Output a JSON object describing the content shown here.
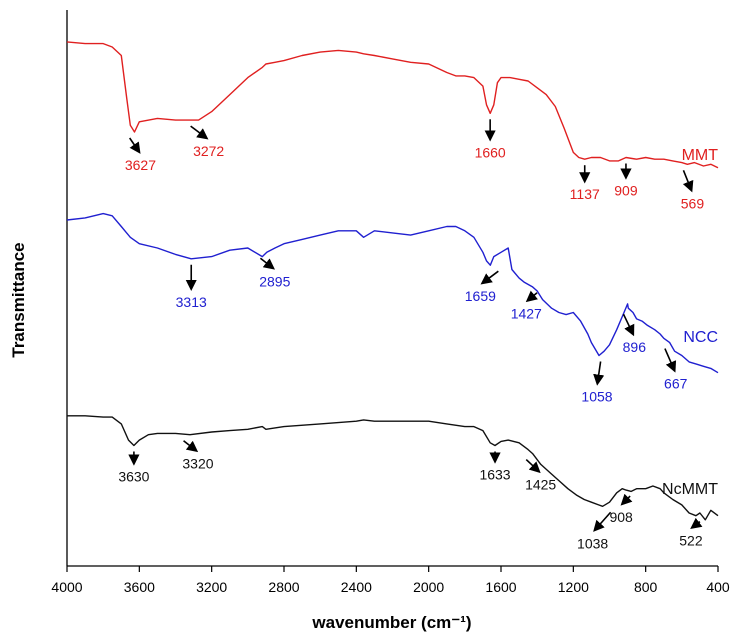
{
  "chart_data": {
    "type": "line",
    "title": "",
    "xlabel": "wavenumber (cm⁻¹)",
    "ylabel": "Transmittance",
    "xlim": [
      4000,
      400
    ],
    "x_ticks": [
      "4000",
      "3600",
      "3200",
      "2800",
      "2400",
      "2000",
      "1600",
      "1200",
      "800",
      "400"
    ],
    "y_ticks": [],
    "grid": false,
    "legend": "none (series labelled directly at right end of each curve)",
    "series": [
      {
        "name": "MMT",
        "color": "#e02020",
        "x": [
          4000,
          3900,
          3800,
          3750,
          3700,
          3670,
          3650,
          3627,
          3600,
          3500,
          3400,
          3272,
          3200,
          3100,
          3000,
          2920,
          2900,
          2850,
          2800,
          2700,
          2600,
          2500,
          2400,
          2360,
          2300,
          2200,
          2100,
          2000,
          1900,
          1850,
          1800,
          1750,
          1700,
          1680,
          1660,
          1640,
          1620,
          1600,
          1550,
          1500,
          1450,
          1400,
          1350,
          1300,
          1250,
          1200,
          1170,
          1137,
          1100,
          1050,
          1000,
          950,
          909,
          850,
          800,
          750,
          700,
          650,
          600,
          569,
          530,
          480,
          440,
          400
        ],
        "y": [
          93,
          92,
          92,
          90,
          85,
          60,
          44,
          40,
          46,
          48,
          47,
          47,
          52,
          62,
          72,
          78,
          80,
          81,
          82,
          85,
          87,
          88,
          87,
          86,
          85,
          83,
          81,
          80,
          75,
          73,
          73,
          72,
          67,
          56,
          51,
          56,
          69,
          72,
          72,
          71,
          70,
          66,
          62,
          55,
          42,
          28,
          25,
          24,
          25,
          25,
          23,
          23,
          25,
          24,
          25,
          24,
          24,
          23,
          22,
          21,
          22,
          20,
          21,
          19
        ]
      },
      {
        "name": "NCC",
        "color": "#2020d0",
        "x": [
          4000,
          3900,
          3800,
          3750,
          3700,
          3650,
          3600,
          3500,
          3400,
          3313,
          3200,
          3100,
          3000,
          2920,
          2895,
          2850,
          2800,
          2700,
          2600,
          2500,
          2400,
          2360,
          2300,
          2200,
          2100,
          2000,
          1900,
          1850,
          1800,
          1750,
          1700,
          1680,
          1659,
          1640,
          1600,
          1560,
          1540,
          1500,
          1470,
          1427,
          1400,
          1370,
          1320,
          1280,
          1240,
          1200,
          1160,
          1120,
          1100,
          1058,
          1030,
          1000,
          960,
          920,
          900,
          896,
          870,
          850,
          820,
          790,
          750,
          720,
          700,
          667,
          640,
          600,
          560,
          520,
          480,
          440,
          400
        ],
        "y": [
          93,
          94,
          96,
          95,
          90,
          85,
          82,
          80,
          77,
          75,
          76,
          79,
          80,
          76,
          78,
          80,
          82,
          84,
          86,
          88,
          88,
          85,
          88,
          87,
          86,
          88,
          90,
          90,
          88,
          85,
          78,
          74,
          72,
          76,
          78,
          80,
          70,
          66,
          64,
          62,
          60,
          56,
          52,
          50,
          49,
          50,
          46,
          40,
          36,
          30,
          32,
          35,
          42,
          50,
          54,
          52,
          50,
          47,
          46,
          44,
          42,
          40,
          38,
          36,
          32,
          30,
          27,
          26,
          25,
          24,
          22
        ]
      },
      {
        "name": "NcMMT",
        "color": "#111111",
        "x": [
          4000,
          3900,
          3800,
          3750,
          3700,
          3660,
          3630,
          3600,
          3550,
          3500,
          3400,
          3320,
          3200,
          3100,
          3000,
          2920,
          2900,
          2800,
          2600,
          2400,
          2360,
          2300,
          2200,
          2100,
          2000,
          1900,
          1800,
          1750,
          1700,
          1660,
          1633,
          1600,
          1560,
          1500,
          1450,
          1425,
          1380,
          1330,
          1280,
          1230,
          1180,
          1140,
          1100,
          1060,
          1038,
          1000,
          960,
          930,
          908,
          880,
          850,
          800,
          760,
          720,
          700,
          650,
          600,
          560,
          522,
          500,
          470,
          440,
          400
        ],
        "y": [
          92,
          92,
          91,
          91,
          86,
          74,
          70,
          74,
          78,
          79,
          79,
          78,
          80,
          81,
          82,
          84,
          82,
          84,
          86,
          88,
          89,
          88,
          88,
          88,
          88,
          86,
          84,
          84,
          81,
          72,
          70,
          73,
          74,
          72,
          67,
          64,
          56,
          50,
          44,
          38,
          33,
          30,
          28,
          26,
          25,
          28,
          35,
          38,
          37,
          36,
          38,
          38,
          40,
          38,
          35,
          30,
          26,
          20,
          18,
          20,
          15,
          22,
          18
        ]
      }
    ],
    "annotations": [
      {
        "series": "MMT",
        "text": "3627",
        "x": 3627
      },
      {
        "series": "MMT",
        "text": "3272",
        "x": 3272
      },
      {
        "series": "MMT",
        "text": "1660",
        "x": 1660
      },
      {
        "series": "MMT",
        "text": "1137",
        "x": 1137
      },
      {
        "series": "MMT",
        "text": "909",
        "x": 909
      },
      {
        "series": "MMT",
        "text": "569",
        "x": 569
      },
      {
        "series": "NCC",
        "text": "3313",
        "x": 3313
      },
      {
        "series": "NCC",
        "text": "2895",
        "x": 2895
      },
      {
        "series": "NCC",
        "text": "1659",
        "x": 1659
      },
      {
        "series": "NCC",
        "text": "1427",
        "x": 1427
      },
      {
        "series": "NCC",
        "text": "1058",
        "x": 1058
      },
      {
        "series": "NCC",
        "text": "896",
        "x": 896
      },
      {
        "series": "NCC",
        "text": "667",
        "x": 667
      },
      {
        "series": "NcMMT",
        "text": "3630",
        "x": 3630
      },
      {
        "series": "NcMMT",
        "text": "3320",
        "x": 3320
      },
      {
        "series": "NcMMT",
        "text": "1633",
        "x": 1633
      },
      {
        "series": "NcMMT",
        "text": "1425",
        "x": 1425
      },
      {
        "series": "NcMMT",
        "text": "1038",
        "x": 1038
      },
      {
        "series": "NcMMT",
        "text": "908",
        "x": 908
      },
      {
        "series": "NcMMT",
        "text": "522",
        "x": 522
      }
    ]
  }
}
